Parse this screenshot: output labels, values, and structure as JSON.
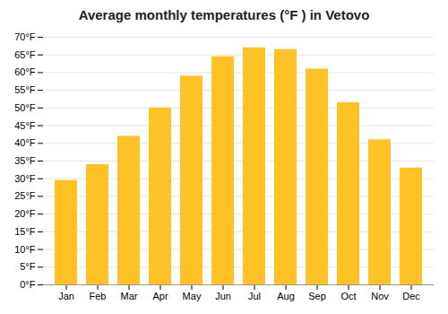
{
  "chart_data": {
    "type": "bar",
    "title": "Average monthly temperatures (°F ) in Vetovo",
    "categories": [
      "Jan",
      "Feb",
      "Mar",
      "Apr",
      "May",
      "Jun",
      "Jul",
      "Aug",
      "Sep",
      "Oct",
      "Nov",
      "Dec"
    ],
    "values": [
      29.5,
      34.0,
      42.0,
      50.0,
      59.0,
      64.5,
      67.0,
      66.5,
      61.0,
      51.5,
      41.0,
      33.0
    ],
    "color": "#FFC226",
    "ylim": [
      0,
      70
    ],
    "yticks": [
      {
        "value": 0,
        "label": "0°F"
      },
      {
        "value": 5,
        "label": "5°F"
      },
      {
        "value": 10,
        "label": "10°F"
      },
      {
        "value": 15,
        "label": "15°F"
      },
      {
        "value": 20,
        "label": "20°F"
      },
      {
        "value": 25,
        "label": "25°F"
      },
      {
        "value": 30,
        "label": "30°F"
      },
      {
        "value": 35,
        "label": "35°F"
      },
      {
        "value": 40,
        "label": "40°F"
      },
      {
        "value": 45,
        "label": "45°F"
      },
      {
        "value": 50,
        "label": "50°F"
      },
      {
        "value": 55,
        "label": "55°F"
      },
      {
        "value": 60,
        "label": "60°F"
      },
      {
        "value": 65,
        "label": "65°F"
      },
      {
        "value": 70,
        "label": "70°F"
      }
    ],
    "grid": true
  }
}
